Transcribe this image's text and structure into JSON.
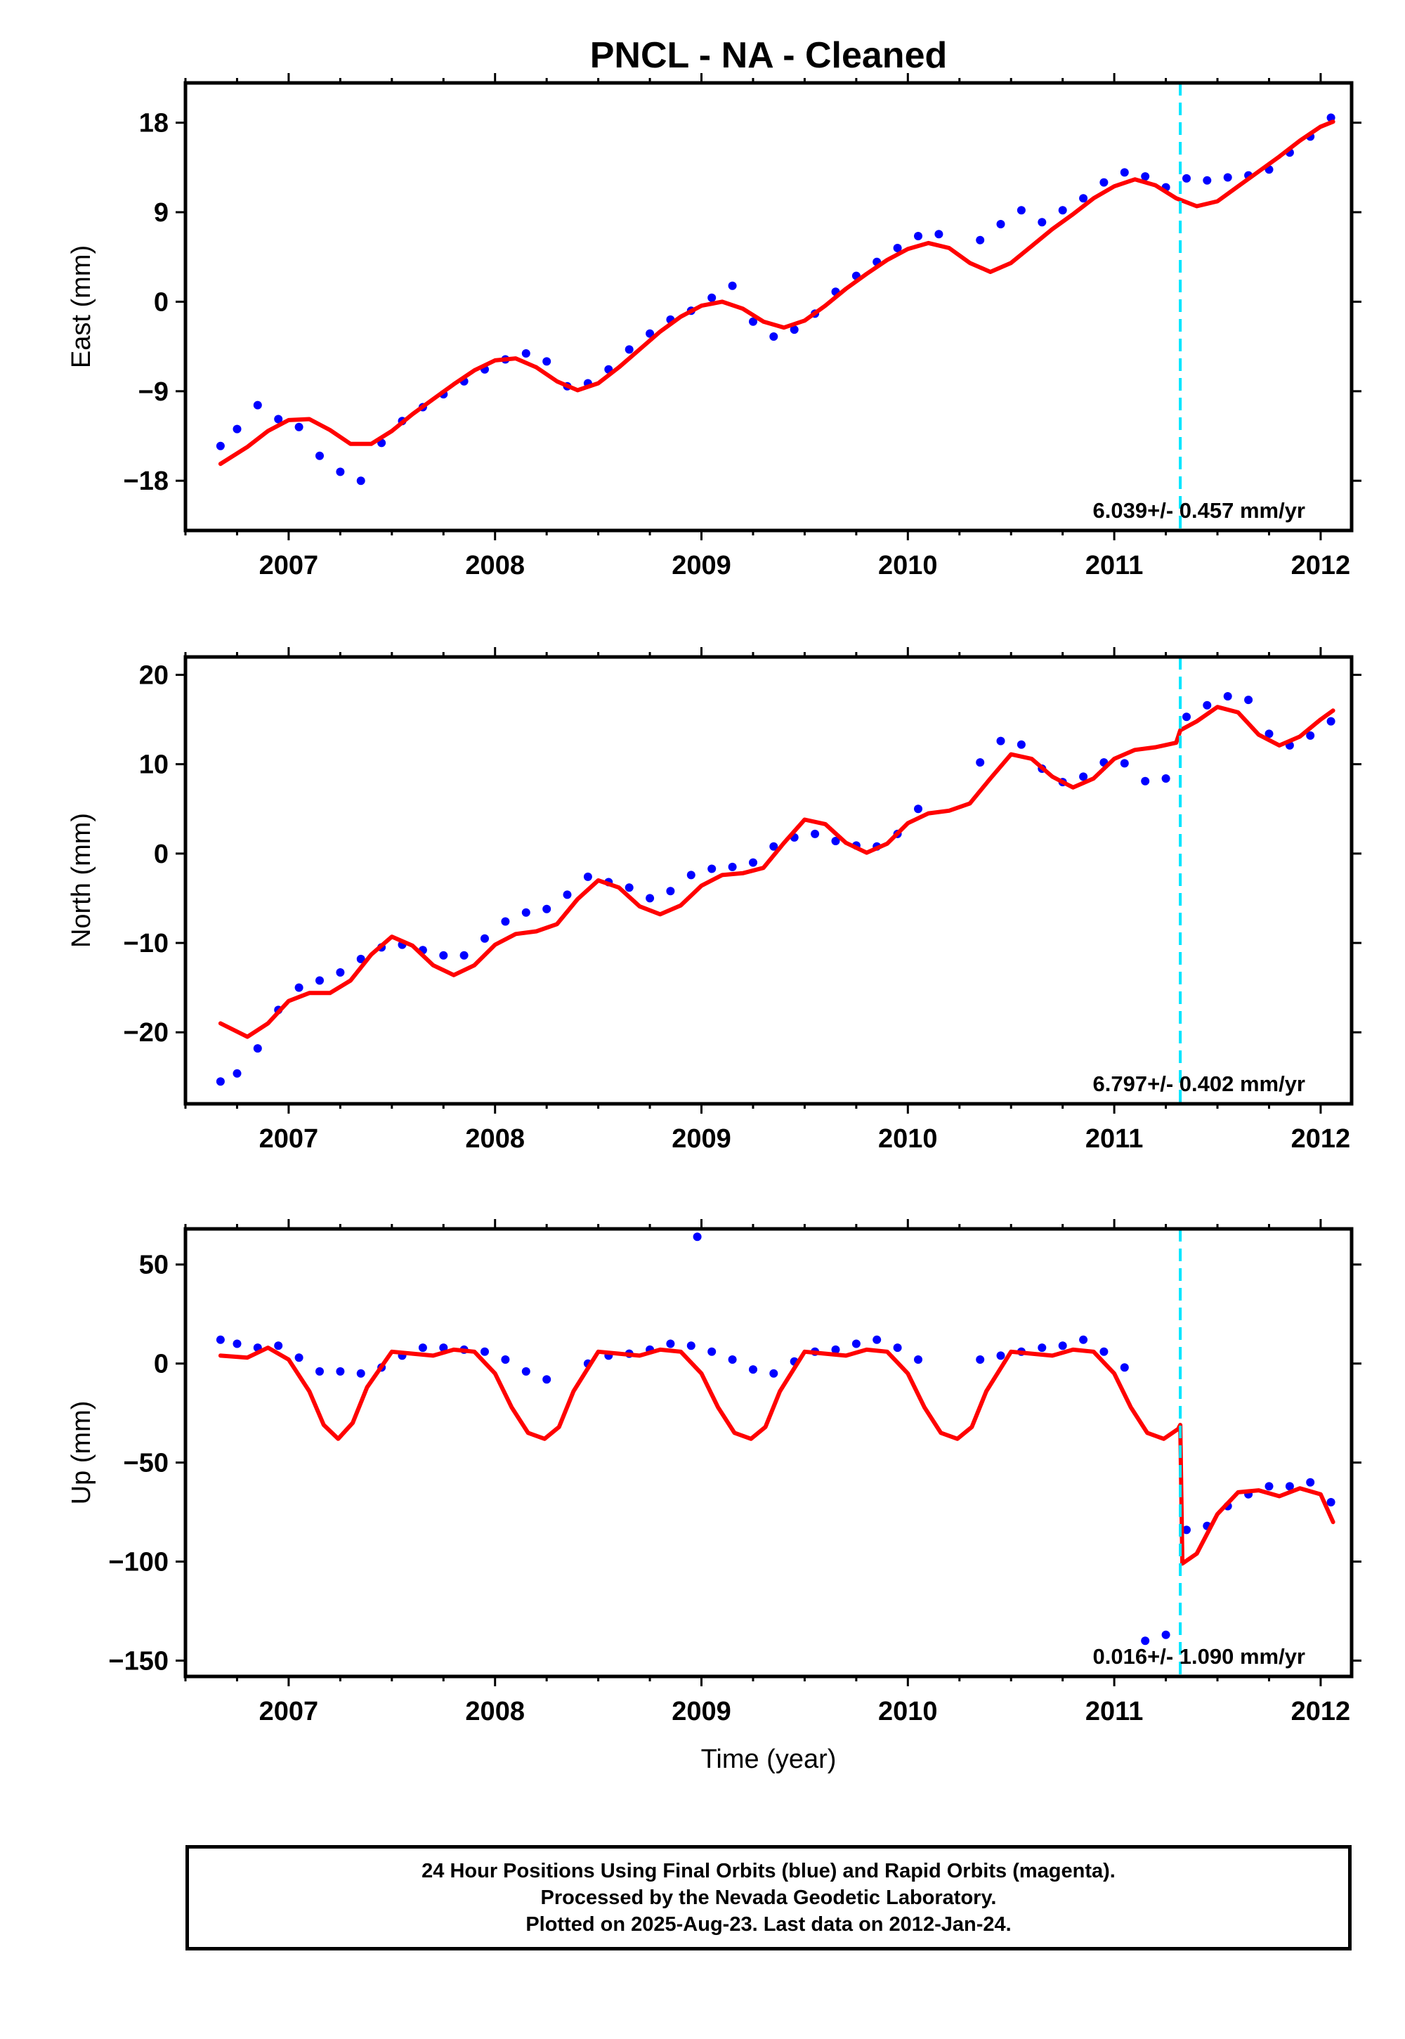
{
  "figure": {
    "title": "PNCL  - NA - Cleaned",
    "xlabel": "Time (year)",
    "notes": [
      "24 Hour Positions Using Final Orbits (blue) and Rapid Orbits (magenta).",
      "Processed by the Nevada Geodetic Laboratory.",
      "Plotted on 2025-Aug-23. Last data on 2012-Jan-24."
    ]
  },
  "colors": {
    "data": "#0000ff",
    "model": "#ff0000",
    "event": "#00e5ff",
    "axis": "#000000"
  },
  "chart_data": [
    {
      "type": "scatter",
      "ylabel": "East (mm)",
      "xlim": [
        2006.5,
        2012.15
      ],
      "ylim": [
        -23,
        22
      ],
      "xticks": [
        2007,
        2008,
        2009,
        2010,
        2011,
        2012
      ],
      "yticks": [
        -18,
        -9,
        0,
        9,
        18
      ],
      "ytick_labels": [
        "−18",
        "−9",
        "0",
        "9",
        "18"
      ],
      "rate": "6.039+/- 0.457 mm/yr",
      "event_line_x": 2011.32,
      "data_x": [
        2006.67,
        2006.75,
        2006.85,
        2006.95,
        2007.05,
        2007.15,
        2007.25,
        2007.35,
        2007.45,
        2007.55,
        2007.65,
        2007.75,
        2007.85,
        2007.95,
        2008.05,
        2008.15,
        2008.25,
        2008.35,
        2008.45,
        2008.55,
        2008.65,
        2008.75,
        2008.85,
        2008.95,
        2009.05,
        2009.15,
        2009.25,
        2009.35,
        2009.45,
        2009.55,
        2009.65,
        2009.75,
        2009.85,
        2009.95,
        2010.05,
        2010.15,
        2010.35,
        2010.45,
        2010.55,
        2010.65,
        2010.75,
        2010.85,
        2010.95,
        2011.05,
        2011.15,
        2011.25,
        2011.35,
        2011.45,
        2011.55,
        2011.65,
        2011.75,
        2011.85,
        2011.95,
        2012.05
      ],
      "data_y": [
        -14.5,
        -12.8,
        -10.4,
        -11.8,
        -12.6,
        -15.5,
        -17.1,
        -18.0,
        -14.2,
        -12.0,
        -10.6,
        -9.3,
        -8.0,
        -6.8,
        -5.8,
        -5.2,
        -6.0,
        -8.5,
        -8.2,
        -6.8,
        -4.8,
        -3.2,
        -1.8,
        -0.9,
        0.4,
        1.6,
        -2.0,
        -3.5,
        -2.8,
        -1.2,
        1.0,
        2.6,
        4.0,
        5.4,
        6.6,
        6.8,
        6.2,
        7.8,
        9.2,
        8.0,
        9.2,
        10.4,
        12.0,
        13.0,
        12.6,
        11.5,
        12.4,
        12.2,
        12.5,
        12.7,
        13.3,
        15.0,
        16.6,
        18.5
      ],
      "model_x": [
        2006.67,
        2006.8,
        2006.9,
        2007.0,
        2007.1,
        2007.2,
        2007.3,
        2007.4,
        2007.5,
        2007.6,
        2007.7,
        2007.8,
        2007.9,
        2008.0,
        2008.1,
        2008.2,
        2008.3,
        2008.4,
        2008.5,
        2008.6,
        2008.7,
        2008.8,
        2008.9,
        2009.0,
        2009.1,
        2009.2,
        2009.3,
        2009.4,
        2009.5,
        2009.6,
        2009.7,
        2009.8,
        2009.9,
        2010.0,
        2010.1,
        2010.2,
        2010.3,
        2010.4,
        2010.5,
        2010.6,
        2010.7,
        2010.8,
        2010.9,
        2011.0,
        2011.1,
        2011.2,
        2011.3,
        2011.4,
        2011.5,
        2011.6,
        2011.7,
        2011.8,
        2011.9,
        2012.0,
        2012.06
      ],
      "model_y": [
        -16.3,
        -14.6,
        -13.0,
        -11.9,
        -11.8,
        -12.9,
        -14.3,
        -14.3,
        -13.0,
        -11.3,
        -9.8,
        -8.3,
        -6.9,
        -5.9,
        -5.7,
        -6.6,
        -8.0,
        -8.9,
        -8.2,
        -6.6,
        -4.8,
        -3.0,
        -1.5,
        -0.4,
        0.0,
        -0.7,
        -2.0,
        -2.6,
        -1.9,
        -0.4,
        1.3,
        2.8,
        4.2,
        5.3,
        5.9,
        5.4,
        3.9,
        3.0,
        3.9,
        5.6,
        7.3,
        8.8,
        10.4,
        11.6,
        12.3,
        11.7,
        10.4,
        9.6,
        10.1,
        11.6,
        13.1,
        14.6,
        16.2,
        17.6,
        18.1
      ]
    },
    {
      "type": "scatter",
      "ylabel": "North (mm)",
      "xlim": [
        2006.5,
        2012.15
      ],
      "ylim": [
        -28,
        22
      ],
      "xticks": [
        2007,
        2008,
        2009,
        2010,
        2011,
        2012
      ],
      "yticks": [
        -20,
        -10,
        0,
        10,
        20
      ],
      "ytick_labels": [
        "−20",
        "−10",
        "0",
        "10",
        "20"
      ],
      "rate": "6.797+/- 0.402 mm/yr",
      "event_line_x": 2011.32,
      "data_x": [
        2006.67,
        2006.75,
        2006.85,
        2006.95,
        2007.05,
        2007.15,
        2007.25,
        2007.35,
        2007.45,
        2007.55,
        2007.65,
        2007.75,
        2007.85,
        2007.95,
        2008.05,
        2008.15,
        2008.25,
        2008.35,
        2008.45,
        2008.55,
        2008.65,
        2008.75,
        2008.85,
        2008.95,
        2009.05,
        2009.15,
        2009.25,
        2009.35,
        2009.45,
        2009.55,
        2009.65,
        2009.75,
        2009.85,
        2009.95,
        2010.05,
        2010.35,
        2010.45,
        2010.55,
        2010.65,
        2010.75,
        2010.85,
        2010.95,
        2011.05,
        2011.15,
        2011.25,
        2011.35,
        2011.45,
        2011.55,
        2011.65,
        2011.75,
        2011.85,
        2011.95,
        2012.05
      ],
      "data_y": [
        -25.5,
        -24.6,
        -21.8,
        -17.5,
        -15.0,
        -14.2,
        -13.3,
        -11.8,
        -10.5,
        -10.2,
        -10.8,
        -11.4,
        -11.4,
        -9.5,
        -7.6,
        -6.6,
        -6.2,
        -4.6,
        -2.6,
        -3.2,
        -3.8,
        -5.0,
        -4.2,
        -2.4,
        -1.7,
        -1.5,
        -1.0,
        0.8,
        1.8,
        2.2,
        1.4,
        0.9,
        0.8,
        2.2,
        5.0,
        10.2,
        12.6,
        12.2,
        9.5,
        8.0,
        8.6,
        10.2,
        10.1,
        8.1,
        8.4,
        15.3,
        16.6,
        17.6,
        17.2,
        13.4,
        12.1,
        13.2,
        14.8
      ],
      "model_x": [
        2006.67,
        2006.8,
        2006.9,
        2007.0,
        2007.1,
        2007.2,
        2007.3,
        2007.4,
        2007.5,
        2007.6,
        2007.7,
        2007.8,
        2007.9,
        2008.0,
        2008.1,
        2008.2,
        2008.3,
        2008.4,
        2008.5,
        2008.6,
        2008.7,
        2008.8,
        2008.9,
        2009.0,
        2009.1,
        2009.2,
        2009.3,
        2009.4,
        2009.5,
        2009.6,
        2009.7,
        2009.8,
        2009.9,
        2010.0,
        2010.1,
        2010.2,
        2010.3,
        2010.4,
        2010.5,
        2010.6,
        2010.7,
        2010.8,
        2010.9,
        2011.0,
        2011.1,
        2011.2,
        2011.3,
        2011.32,
        2011.4,
        2011.5,
        2011.6,
        2011.7,
        2011.8,
        2011.9,
        2012.0,
        2012.06
      ],
      "model_y": [
        -19.0,
        -20.5,
        -19.0,
        -16.5,
        -15.6,
        -15.6,
        -14.2,
        -11.3,
        -9.3,
        -10.3,
        -12.5,
        -13.6,
        -12.5,
        -10.2,
        -9.0,
        -8.7,
        -7.9,
        -5.1,
        -3.0,
        -3.8,
        -5.9,
        -6.8,
        -5.8,
        -3.6,
        -2.4,
        -2.2,
        -1.6,
        1.2,
        3.8,
        3.3,
        1.2,
        0.1,
        1.1,
        3.4,
        4.5,
        4.8,
        5.6,
        8.4,
        11.1,
        10.6,
        8.6,
        7.4,
        8.4,
        10.6,
        11.6,
        11.9,
        12.4,
        13.8,
        14.8,
        16.4,
        15.8,
        13.3,
        12.1,
        13.1,
        15.0,
        16.0
      ]
    },
    {
      "type": "scatter",
      "ylabel": "Up (mm)",
      "xlim": [
        2006.5,
        2012.15
      ],
      "ylim": [
        -158,
        68
      ],
      "xticks": [
        2007,
        2008,
        2009,
        2010,
        2011,
        2012
      ],
      "yticks": [
        -150,
        -100,
        -50,
        0,
        50
      ],
      "ytick_labels": [
        "−150",
        "−100",
        "−50",
        "0",
        "50"
      ],
      "rate": "0.016+/- 1.090 mm/yr",
      "event_line_x": 2011.32,
      "data_x": [
        2006.67,
        2006.75,
        2006.85,
        2006.95,
        2007.05,
        2007.15,
        2007.25,
        2007.35,
        2007.45,
        2007.55,
        2007.65,
        2007.75,
        2007.85,
        2007.95,
        2008.05,
        2008.15,
        2008.25,
        2008.45,
        2008.55,
        2008.65,
        2008.75,
        2008.85,
        2008.95,
        2008.98,
        2009.05,
        2009.15,
        2009.25,
        2009.35,
        2009.45,
        2009.55,
        2009.65,
        2009.75,
        2009.85,
        2009.95,
        2010.05,
        2010.35,
        2010.45,
        2010.55,
        2010.65,
        2010.75,
        2010.85,
        2010.95,
        2011.05,
        2011.15,
        2011.25,
        2011.35,
        2011.45,
        2011.55,
        2011.65,
        2011.75,
        2011.85,
        2011.95,
        2012.05
      ],
      "data_y": [
        12,
        10,
        8,
        9,
        3,
        -4,
        -4,
        -5,
        -2,
        4,
        8,
        8,
        7,
        6,
        2,
        -4,
        -8,
        0,
        4,
        5,
        7,
        10,
        9,
        64,
        6,
        2,
        -3,
        -5,
        1,
        6,
        7,
        10,
        12,
        8,
        2,
        2,
        4,
        6,
        8,
        9,
        12,
        6,
        -2,
        -140,
        -137,
        -84,
        -82,
        -72,
        -66,
        -62,
        -62,
        -60,
        -70
      ],
      "model_x": [
        2006.67,
        2006.8,
        2006.9,
        2007.0,
        2007.1,
        2007.17,
        2007.24,
        2007.31,
        2007.38,
        2007.5,
        2007.6,
        2007.7,
        2007.8,
        2007.9,
        2008.0,
        2008.08,
        2008.16,
        2008.24,
        2008.31,
        2008.38,
        2008.5,
        2008.6,
        2008.7,
        2008.8,
        2008.9,
        2009.0,
        2009.08,
        2009.16,
        2009.24,
        2009.31,
        2009.38,
        2009.5,
        2009.6,
        2009.7,
        2009.8,
        2009.9,
        2010.0,
        2010.08,
        2010.16,
        2010.24,
        2010.31,
        2010.38,
        2010.5,
        2010.6,
        2010.7,
        2010.8,
        2010.9,
        2011.0,
        2011.08,
        2011.16,
        2011.24,
        2011.31,
        2011.32,
        2011.33,
        2011.4,
        2011.5,
        2011.6,
        2011.7,
        2011.8,
        2011.9,
        2012.0,
        2012.06
      ],
      "model_y": [
        4,
        3,
        8,
        2,
        -14,
        -31,
        -38,
        -30,
        -12,
        6,
        5,
        4,
        7,
        6,
        -5,
        -22,
        -35,
        -38,
        -32,
        -14,
        6,
        5,
        4,
        7,
        6,
        -5,
        -22,
        -35,
        -38,
        -32,
        -14,
        6,
        5,
        4,
        7,
        6,
        -5,
        -22,
        -35,
        -38,
        -32,
        -14,
        6,
        5,
        4,
        7,
        6,
        -5,
        -22,
        -35,
        -38,
        -33,
        -31,
        -101,
        -96,
        -76,
        -65,
        -64,
        -67,
        -63,
        -66,
        -80
      ]
    }
  ]
}
